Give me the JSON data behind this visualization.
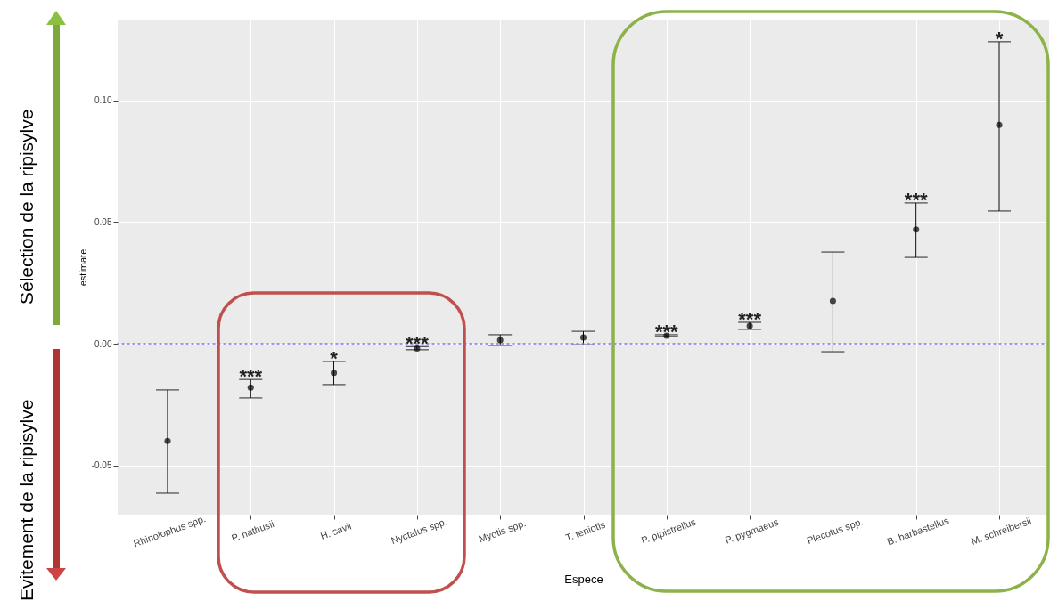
{
  "chart_data": {
    "type": "scatter",
    "xlabel": "Espece",
    "ylabel": "estimate",
    "categories": [
      "Rhinolophus spp.",
      "P. nathusii",
      "H. savii",
      "Nyctalus spp.",
      "Myotis spp.",
      "T. teniotis",
      "P. pipistrellus",
      "P. pygmaeus",
      "Plecotus spp.",
      "B. barbastellus",
      "M. schreibersii"
    ],
    "series": [
      {
        "color": "#000000",
        "values": [
          -0.04,
          -0.018,
          -0.012,
          -0.002,
          0.0015,
          0.0026,
          0.0033,
          0.0073,
          0.0176,
          0.047,
          0.09
        ],
        "errors": [
          [
            -0.0615,
            -0.019
          ],
          [
            -0.0223,
            -0.0147
          ],
          [
            -0.0168,
            -0.0073
          ],
          [
            -0.0025,
            -0.0012
          ],
          [
            -0.0007,
            0.0037
          ],
          [
            -0.0004,
            0.0051
          ],
          [
            0.003,
            0.0037
          ],
          [
            0.0059,
            0.0088
          ],
          [
            -0.0033,
            0.0377
          ],
          [
            0.0355,
            0.0579
          ],
          [
            0.0546,
            0.1242
          ]
        ]
      }
    ],
    "marker": "circle",
    "grid": true,
    "ylim": [
      -0.0703,
      0.1333
    ],
    "yticks": [
      {
        "value": -0.05,
        "label": "-0.05"
      },
      {
        "value": 0,
        "label": "0.00"
      },
      {
        "value": 0.05,
        "label": "0.05"
      },
      {
        "value": 0.1,
        "label": "0.10"
      }
    ],
    "ref_lines": [
      {
        "axis": "y",
        "value": 0,
        "color": "#7b7bea",
        "line_style": "dotted"
      }
    ],
    "annotations": [
      "Sélection de la ripisylve",
      "Evitement de la ripisylve",
      {
        "text": "***",
        "x": "P. nathusii"
      },
      {
        "text": "*",
        "x": "H. savii"
      },
      {
        "text": "***",
        "x": "Nyctalus spp."
      },
      {
        "text": "***",
        "x": "P. pipistrellus"
      },
      {
        "text": "***",
        "x": "P. pygmaeus"
      },
      {
        "text": "***",
        "x": "B. barbastellus"
      },
      {
        "text": "*",
        "x": "M. schreibersii"
      }
    ]
  }
}
